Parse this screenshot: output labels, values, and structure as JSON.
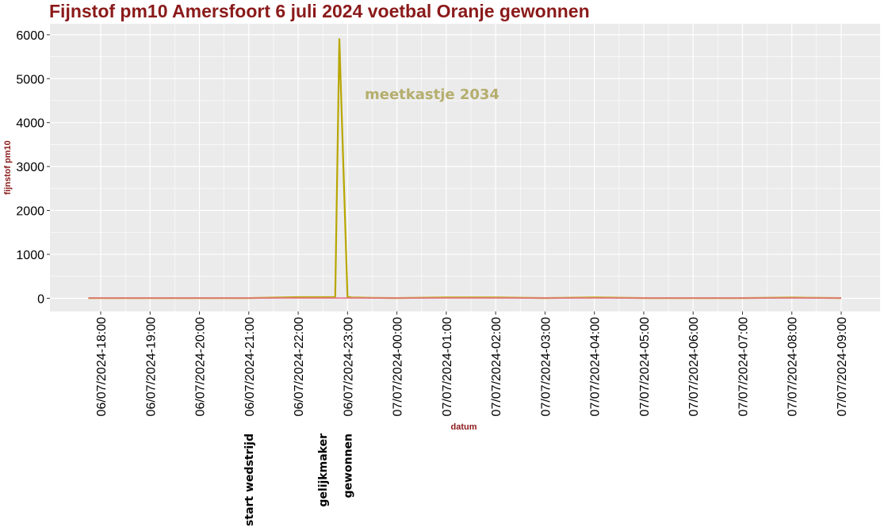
{
  "chart_data": {
    "type": "line",
    "title": "Fijnstof pm10 Amersfoort 6 juli 2024 voetbal Oranje gewonnen",
    "xlabel": "datum",
    "ylabel": "fijnstof pm10",
    "ylim": [
      -300,
      6250
    ],
    "yticks": [
      0,
      1000,
      2000,
      3000,
      4000,
      5000,
      6000
    ],
    "x_ticks": [
      "06/07/2024-18:00",
      "06/07/2024-19:00",
      "06/07/2024-20:00",
      "06/07/2024-21:00",
      "06/07/2024-22:00",
      "06/07/2024-23:00",
      "07/07/2024-00:00",
      "07/07/2024-01:00",
      "07/07/2024-02:00",
      "07/07/2024-03:00",
      "07/07/2024-04:00",
      "07/07/2024-05:00",
      "07/07/2024-06:00",
      "07/07/2024-07:00",
      "07/07/2024-08:00",
      "07/07/2024-09:00"
    ],
    "grid": true,
    "background": "#ebebeb",
    "series": [
      {
        "name": "",
        "label": "meetkastje 2034",
        "color": "#b8a600",
        "label_color": "#b5ae6e",
        "x": [
          "06/07/2024-17:45",
          "06/07/2024-18:00",
          "06/07/2024-19:00",
          "06/07/2024-20:00",
          "06/07/2024-21:00",
          "06/07/2024-22:00",
          "06/07/2024-22:45",
          "06/07/2024-22:50",
          "06/07/2024-23:00",
          "06/07/2024-23:05",
          "06/07/2024-23:30",
          "07/07/2024-00:00",
          "07/07/2024-01:00",
          "07/07/2024-02:00",
          "07/07/2024-03:00",
          "07/07/2024-04:00",
          "07/07/2024-05:00",
          "07/07/2024-06:00",
          "07/07/2024-07:00",
          "07/07/2024-08:00",
          "07/07/2024-09:00"
        ],
        "y": [
          5,
          5,
          5,
          5,
          5,
          25,
          25,
          5900,
          30,
          20,
          10,
          5,
          20,
          20,
          5,
          20,
          5,
          5,
          5,
          15,
          5
        ]
      },
      {
        "name": "",
        "color": "#e8748a",
        "x": [
          "06/07/2024-17:45",
          "07/07/2024-09:00"
        ],
        "y": [
          5,
          5
        ]
      }
    ],
    "annotations": [
      {
        "text": "start wedstrijd",
        "x": "06/07/2024-21:00"
      },
      {
        "text": "gelijkmaker",
        "x": "06/07/2024-22:30"
      },
      {
        "text": "gewonnen",
        "x": "06/07/2024-23:00"
      }
    ]
  }
}
